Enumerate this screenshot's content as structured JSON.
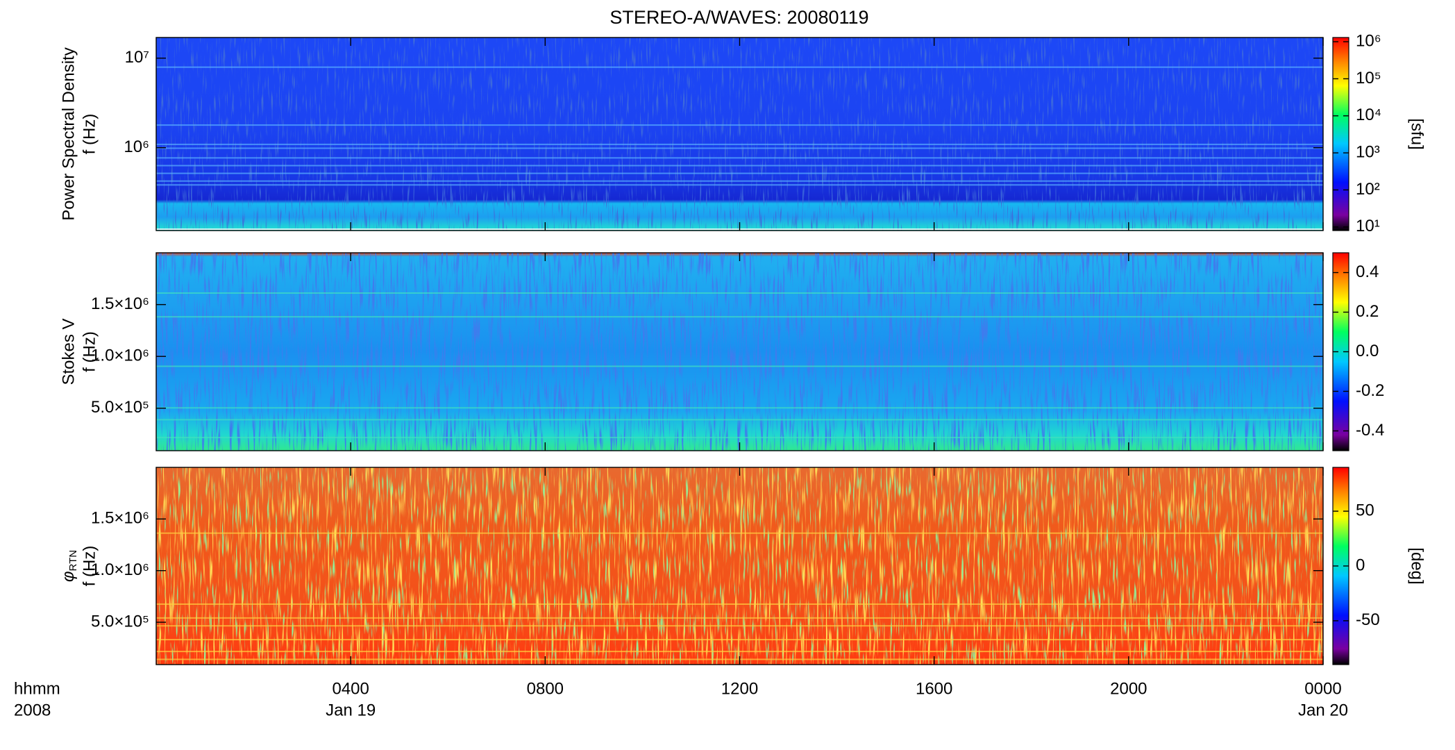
{
  "title": "STEREO-A/WAVES: 20080119",
  "x_axis": {
    "label": [
      "hhmm",
      "2008"
    ],
    "xlim": [
      0,
      24
    ],
    "xticks": [
      {
        "value": 4,
        "label": "0400",
        "date": "Jan 19"
      },
      {
        "value": 8,
        "label": "0800"
      },
      {
        "value": 12,
        "label": "1200"
      },
      {
        "value": 16,
        "label": "1600"
      },
      {
        "value": 20,
        "label": "2000"
      },
      {
        "value": 24,
        "label": "0000",
        "date": "Jan 20"
      }
    ]
  },
  "chart_data": [
    {
      "type": "heatmap",
      "ylabel": [
        "Power Spectral Density",
        "f (Hz)"
      ],
      "log": true,
      "ylim": [
        119000,
        17000000
      ],
      "yticks": [
        {
          "value": 1000000,
          "label": "10⁶"
        },
        {
          "value": 10000000,
          "label": "10⁷"
        }
      ],
      "colorbar": {
        "log": true,
        "lim": [
          8,
          1300000
        ],
        "label": "[sfu]",
        "ticks": [
          {
            "value": 10,
            "label": "10¹"
          },
          {
            "value": 100,
            "label": "10²"
          },
          {
            "value": 1000,
            "label": "10³"
          },
          {
            "value": 10000,
            "label": "10⁴"
          },
          {
            "value": 100000,
            "label": "10⁵"
          },
          {
            "value": 1000000,
            "label": "10⁶"
          }
        ]
      }
    },
    {
      "type": "heatmap",
      "ylabel": [
        "Stokes V",
        "f (Hz)"
      ],
      "log": false,
      "ylim": [
        90000,
        2000000
      ],
      "yticks": [
        {
          "value": 500000,
          "label": "5.0×10⁵"
        },
        {
          "value": 1000000,
          "label": "1.0×10⁶"
        },
        {
          "value": 1500000,
          "label": "1.5×10⁶"
        }
      ],
      "colorbar": {
        "log": false,
        "lim": [
          -0.5,
          0.5
        ],
        "ticks": [
          -0.4,
          -0.2,
          {
            "value": 0,
            "label": "0.0"
          },
          0.2,
          0.4
        ]
      }
    },
    {
      "type": "heatmap",
      "ylabel": [
        {
          "text": "φ",
          "sub": "RTN"
        },
        "f (Hz)"
      ],
      "log": false,
      "ylim": [
        90000,
        2000000
      ],
      "yticks": [
        {
          "value": 500000,
          "label": "5.0×10⁵"
        },
        {
          "value": 1000000,
          "label": "1.0×10⁶"
        },
        {
          "value": 1500000,
          "label": "1.5×10⁶"
        }
      ],
      "colorbar": {
        "log": false,
        "lim": [
          -90,
          90
        ],
        "label": "[deg]",
        "ticks": [
          -50,
          0,
          50
        ]
      }
    }
  ]
}
